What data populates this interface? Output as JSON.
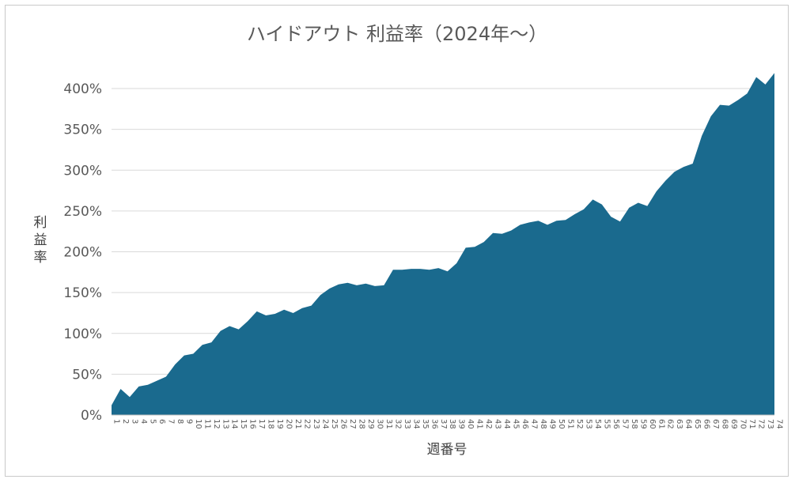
{
  "chart_data": {
    "type": "area",
    "title": "ハイドアウト 利益率（2024年～）",
    "xlabel": "週番号",
    "ylabel": "利益率",
    "ylim": [
      0,
      400
    ],
    "yticks": [
      "0%",
      "50%",
      "100%",
      "150%",
      "200%",
      "250%",
      "300%",
      "350%",
      "400%"
    ],
    "ytick_values": [
      0,
      50,
      100,
      150,
      200,
      250,
      300,
      350,
      400
    ],
    "grid": true,
    "legend": "none",
    "colors": {
      "area": "#1a6a8e",
      "grid": "#d9d9d9",
      "axis": "#bfbfbf"
    },
    "categories": [
      "1",
      "2",
      "3",
      "4",
      "5",
      "6",
      "7",
      "8",
      "9",
      "10",
      "11",
      "12",
      "13",
      "14",
      "15",
      "16",
      "17",
      "18",
      "19",
      "20",
      "21",
      "22",
      "23",
      "24",
      "25",
      "26",
      "27",
      "28",
      "29",
      "30",
      "31",
      "32",
      "33",
      "34",
      "35",
      "36",
      "37",
      "38",
      "39",
      "40",
      "41",
      "42",
      "43",
      "44",
      "45",
      "46",
      "47",
      "48",
      "49",
      "50",
      "51",
      "52",
      "53",
      "54",
      "55",
      "56",
      "57",
      "58",
      "59",
      "60",
      "61",
      "62",
      "63",
      "64",
      "65",
      "66",
      "67",
      "68",
      "69",
      "70",
      "71",
      "72",
      "73",
      "74"
    ],
    "values": [
      12,
      32,
      22,
      35,
      37,
      42,
      47,
      62,
      73,
      75,
      86,
      89,
      103,
      109,
      105,
      115,
      127,
      122,
      124,
      129,
      125,
      131,
      134,
      147,
      155,
      160,
      162,
      159,
      161,
      158,
      159,
      178,
      178,
      179,
      179,
      178,
      180,
      176,
      186,
      205,
      206,
      212,
      223,
      222,
      226,
      233,
      236,
      238,
      233,
      238,
      239,
      246,
      252,
      264,
      258,
      243,
      237,
      254,
      260,
      256,
      274,
      287,
      298,
      304,
      308,
      342,
      366,
      380,
      379,
      386,
      394,
      414,
      405,
      419
    ]
  }
}
